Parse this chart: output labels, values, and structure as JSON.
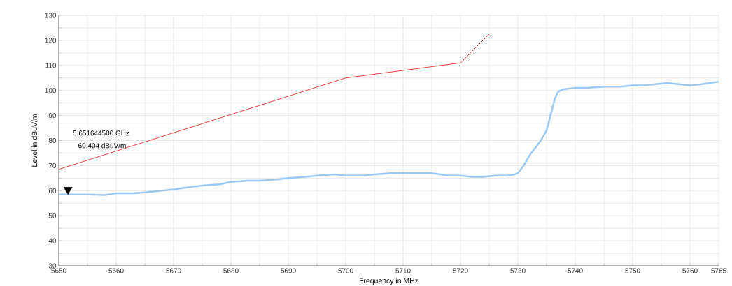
{
  "chart_data": {
    "type": "line",
    "xlabel": "Frequency in MHz",
    "ylabel": "Level in dBuV/m",
    "xlim": [
      5650,
      5765
    ],
    "ylim": [
      30,
      130
    ],
    "xticks": [
      5650,
      {
        "value": 5655,
        "label": null
      },
      5660,
      {
        "value": 5665,
        "label": null
      },
      5670,
      {
        "value": 5675,
        "label": null
      },
      5680,
      {
        "value": 5685,
        "label": null
      },
      5690,
      {
        "value": 5695,
        "label": null
      },
      5700,
      {
        "value": 5705,
        "label": null
      },
      5710,
      {
        "value": 5715,
        "label": null
      },
      5720,
      {
        "value": 5725,
        "label": null
      },
      5730,
      {
        "value": 5735,
        "label": null
      },
      5740,
      {
        "value": 5745,
        "label": null
      },
      5750,
      {
        "value": 5755,
        "label": null
      },
      5760,
      5765
    ],
    "yticks": [
      30,
      {
        "value": 35,
        "label": null
      },
      40,
      {
        "value": 45,
        "label": null
      },
      50,
      {
        "value": 55,
        "label": null
      },
      60,
      {
        "value": 65,
        "label": null
      },
      70,
      {
        "value": 75,
        "label": null
      },
      80,
      {
        "value": 85,
        "label": null
      },
      90,
      {
        "value": 95,
        "label": null
      },
      100,
      {
        "value": 105,
        "label": null
      },
      110,
      {
        "value": 115,
        "label": null
      },
      120,
      {
        "value": 125,
        "label": null
      },
      130
    ],
    "grid": true,
    "series": [
      {
        "color": "#e8413f",
        "x": [
          5650,
          5700,
          5720,
          5725
        ],
        "values": [
          68.5,
          105,
          111,
          122.5
        ]
      },
      {
        "color": "#99c9f5",
        "x": [
          5650,
          5652,
          5655,
          5658,
          5660,
          5663,
          5665,
          5668,
          5670,
          5673,
          5675,
          5678,
          5680,
          5683,
          5685,
          5688,
          5690,
          5693,
          5695,
          5698,
          5700,
          5703,
          5705,
          5708,
          5710,
          5713,
          5715,
          5718,
          5720,
          5722,
          5724,
          5726,
          5728,
          5729.5,
          5730,
          5731,
          5732,
          5733,
          5734,
          5735,
          5736,
          5736.5,
          5737,
          5738,
          5740,
          5742,
          5745,
          5748,
          5750,
          5752,
          5754,
          5756,
          5758,
          5760,
          5762,
          5765
        ],
        "values": [
          58.5,
          58.5,
          58.5,
          58.3,
          59,
          59,
          59.3,
          60,
          60.5,
          61.5,
          62,
          62.5,
          63.5,
          64,
          64,
          64.5,
          65,
          65.5,
          66,
          66.5,
          66,
          66,
          66.5,
          67,
          67,
          67,
          67,
          66,
          66,
          65.5,
          65.5,
          66,
          66,
          66.5,
          67,
          70,
          74,
          77,
          80,
          84,
          93,
          97,
          99.5,
          100.5,
          101,
          101,
          101.5,
          101.5,
          102,
          102,
          102.5,
          103,
          102.5,
          102,
          102.5,
          103.5
        ]
      },
      {
        "type": "scatter",
        "color": "#000000",
        "marker": "triangle",
        "x": [
          5651.6
        ],
        "values": [
          60.4
        ]
      }
    ],
    "annotations": [
      "5.651644500 GHz",
      "60.404 dBuV/m"
    ]
  }
}
